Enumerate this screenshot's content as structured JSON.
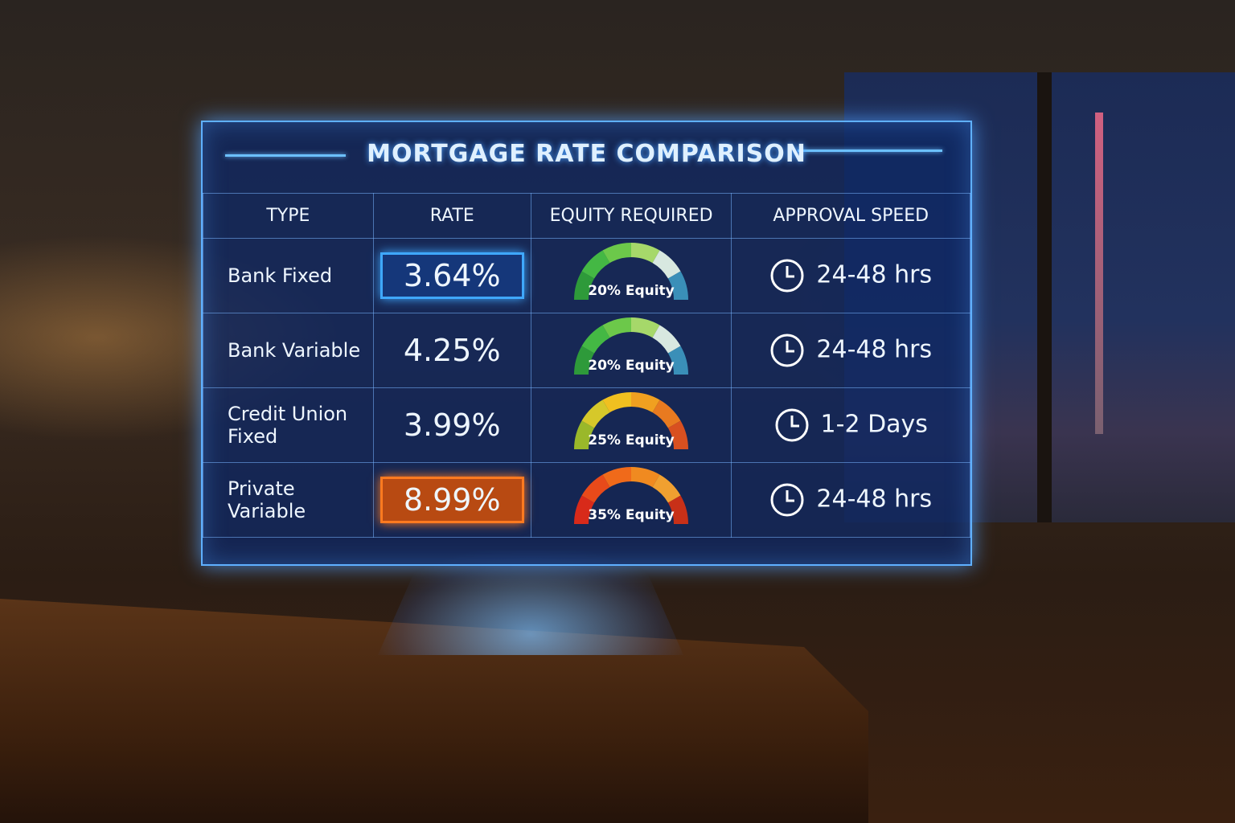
{
  "header": {
    "title": "MORTGAGE RATE COMPARISON"
  },
  "table": {
    "columns": [
      "TYPE",
      "RATE",
      "EQUITY REQUIRED",
      "APPROVAL SPEED"
    ],
    "rows": [
      [
        "Bank Fixed",
        "3.64%",
        "20% Equity",
        "24-48 hrs"
      ],
      [
        "Bank Variable",
        "4.25%",
        "20% Equity",
        "24-48 hrs"
      ],
      [
        "Credit Union Fixed",
        "3.99%",
        "25% Equity",
        "1-2 Days"
      ],
      [
        "Private Variable",
        "8.99%",
        "35% Equity",
        "24-48 hrs"
      ]
    ]
  }
}
